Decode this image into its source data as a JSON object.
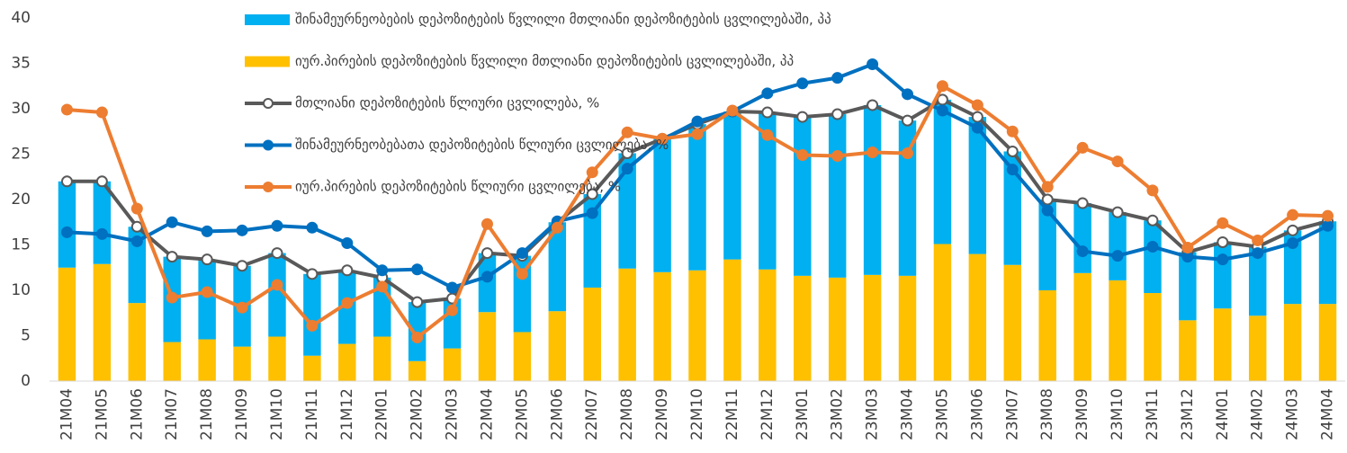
{
  "chart_data": {
    "type": "combo",
    "categories": [
      "21M04",
      "21M05",
      "21M06",
      "21M07",
      "21M08",
      "21M09",
      "21M10",
      "21M11",
      "21M12",
      "22M01",
      "22M02",
      "22M03",
      "22M04",
      "22M05",
      "22M06",
      "22M07",
      "22M08",
      "22M09",
      "22M10",
      "22M11",
      "22M12",
      "23M01",
      "23M02",
      "23M03",
      "23M04",
      "23M05",
      "23M06",
      "23M07",
      "23M08",
      "23M09",
      "23M10",
      "23M11",
      "23M12",
      "24M01",
      "24M02",
      "24M03",
      "24M04"
    ],
    "ylim": [
      0,
      40
    ],
    "yticks": [
      0,
      5,
      10,
      15,
      20,
      25,
      30,
      35,
      40
    ],
    "series": [
      {
        "name": "შინამეურნეობების დეპოზიტების წვლილი მთლიანი დეპოზიტების ცვლილებაში, პპ",
        "type": "bar",
        "color": "#00b0f0",
        "values": [
          9.5,
          9.1,
          8.4,
          9.4,
          8.8,
          8.9,
          9.2,
          9.0,
          8.1,
          6.5,
          6.5,
          5.5,
          6.5,
          8.4,
          9.8,
          10.3,
          12.7,
          14.7,
          16.1,
          16.3,
          17.3,
          17.5,
          18.0,
          18.7,
          17.1,
          15.9,
          15.1,
          12.5,
          10.0,
          7.7,
          7.5,
          8.0,
          7.5,
          7.3,
          7.6,
          8.1,
          9.1
        ]
      },
      {
        "name": "იურ.პირების დეპოზიტების წვლილი მთლიანი დეპოზიტების ცვლილებაში, პპ",
        "type": "bar",
        "color": "#ffc000",
        "values": [
          12.5,
          12.9,
          8.6,
          4.3,
          4.6,
          3.8,
          4.9,
          2.8,
          4.1,
          4.9,
          2.2,
          3.6,
          7.6,
          5.4,
          7.7,
          10.3,
          12.4,
          12.0,
          12.2,
          13.4,
          12.3,
          11.6,
          11.4,
          11.7,
          11.6,
          15.1,
          14.0,
          12.8,
          10.0,
          11.9,
          11.1,
          9.7,
          6.7,
          8.0,
          7.2,
          8.5,
          8.5
        ]
      },
      {
        "name": "მთლიანი დეპოზიტების წლიური ცვლილება, %",
        "type": "line",
        "color": "#595959",
        "marker_fill": "#ffffff",
        "values": [
          22.0,
          22.0,
          17.0,
          13.7,
          13.4,
          12.7,
          14.1,
          11.8,
          12.2,
          11.4,
          8.7,
          9.1,
          14.1,
          13.8,
          17.5,
          20.6,
          25.1,
          26.7,
          28.3,
          29.7,
          29.6,
          29.1,
          29.4,
          30.4,
          28.7,
          31.0,
          29.1,
          25.3,
          20.0,
          19.6,
          18.6,
          17.7,
          14.2,
          15.3,
          14.8,
          16.6,
          17.6
        ]
      },
      {
        "name": "შინამეურნეობებათა დეპოზიტების წლიური ცვლილება, %",
        "type": "line",
        "color": "#0070c0",
        "marker_fill": "#0070c0",
        "values": [
          16.4,
          16.2,
          15.4,
          17.5,
          16.5,
          16.6,
          17.1,
          16.9,
          15.2,
          12.2,
          12.3,
          10.3,
          11.5,
          14.1,
          17.6,
          18.5,
          23.4,
          26.6,
          28.6,
          29.7,
          31.7,
          32.8,
          33.4,
          34.9,
          31.6,
          29.8,
          27.9,
          23.3,
          18.8,
          14.3,
          13.8,
          14.8,
          13.7,
          13.4,
          14.1,
          15.2,
          17.1
        ]
      },
      {
        "name": "იურ.პირების დეპოზიტების წლიური ცვლილება, %",
        "type": "line",
        "color": "#ed7d31",
        "marker_fill": "#ed7d31",
        "values": [
          29.9,
          29.6,
          19.0,
          9.2,
          9.8,
          8.1,
          10.6,
          6.1,
          8.6,
          10.4,
          4.8,
          7.8,
          17.3,
          11.8,
          16.9,
          23.0,
          27.4,
          26.7,
          27.2,
          29.8,
          27.1,
          24.9,
          24.8,
          25.2,
          25.1,
          32.5,
          30.4,
          27.5,
          21.4,
          25.7,
          24.2,
          21.0,
          14.7,
          17.4,
          15.5,
          18.3,
          18.2
        ]
      }
    ]
  }
}
